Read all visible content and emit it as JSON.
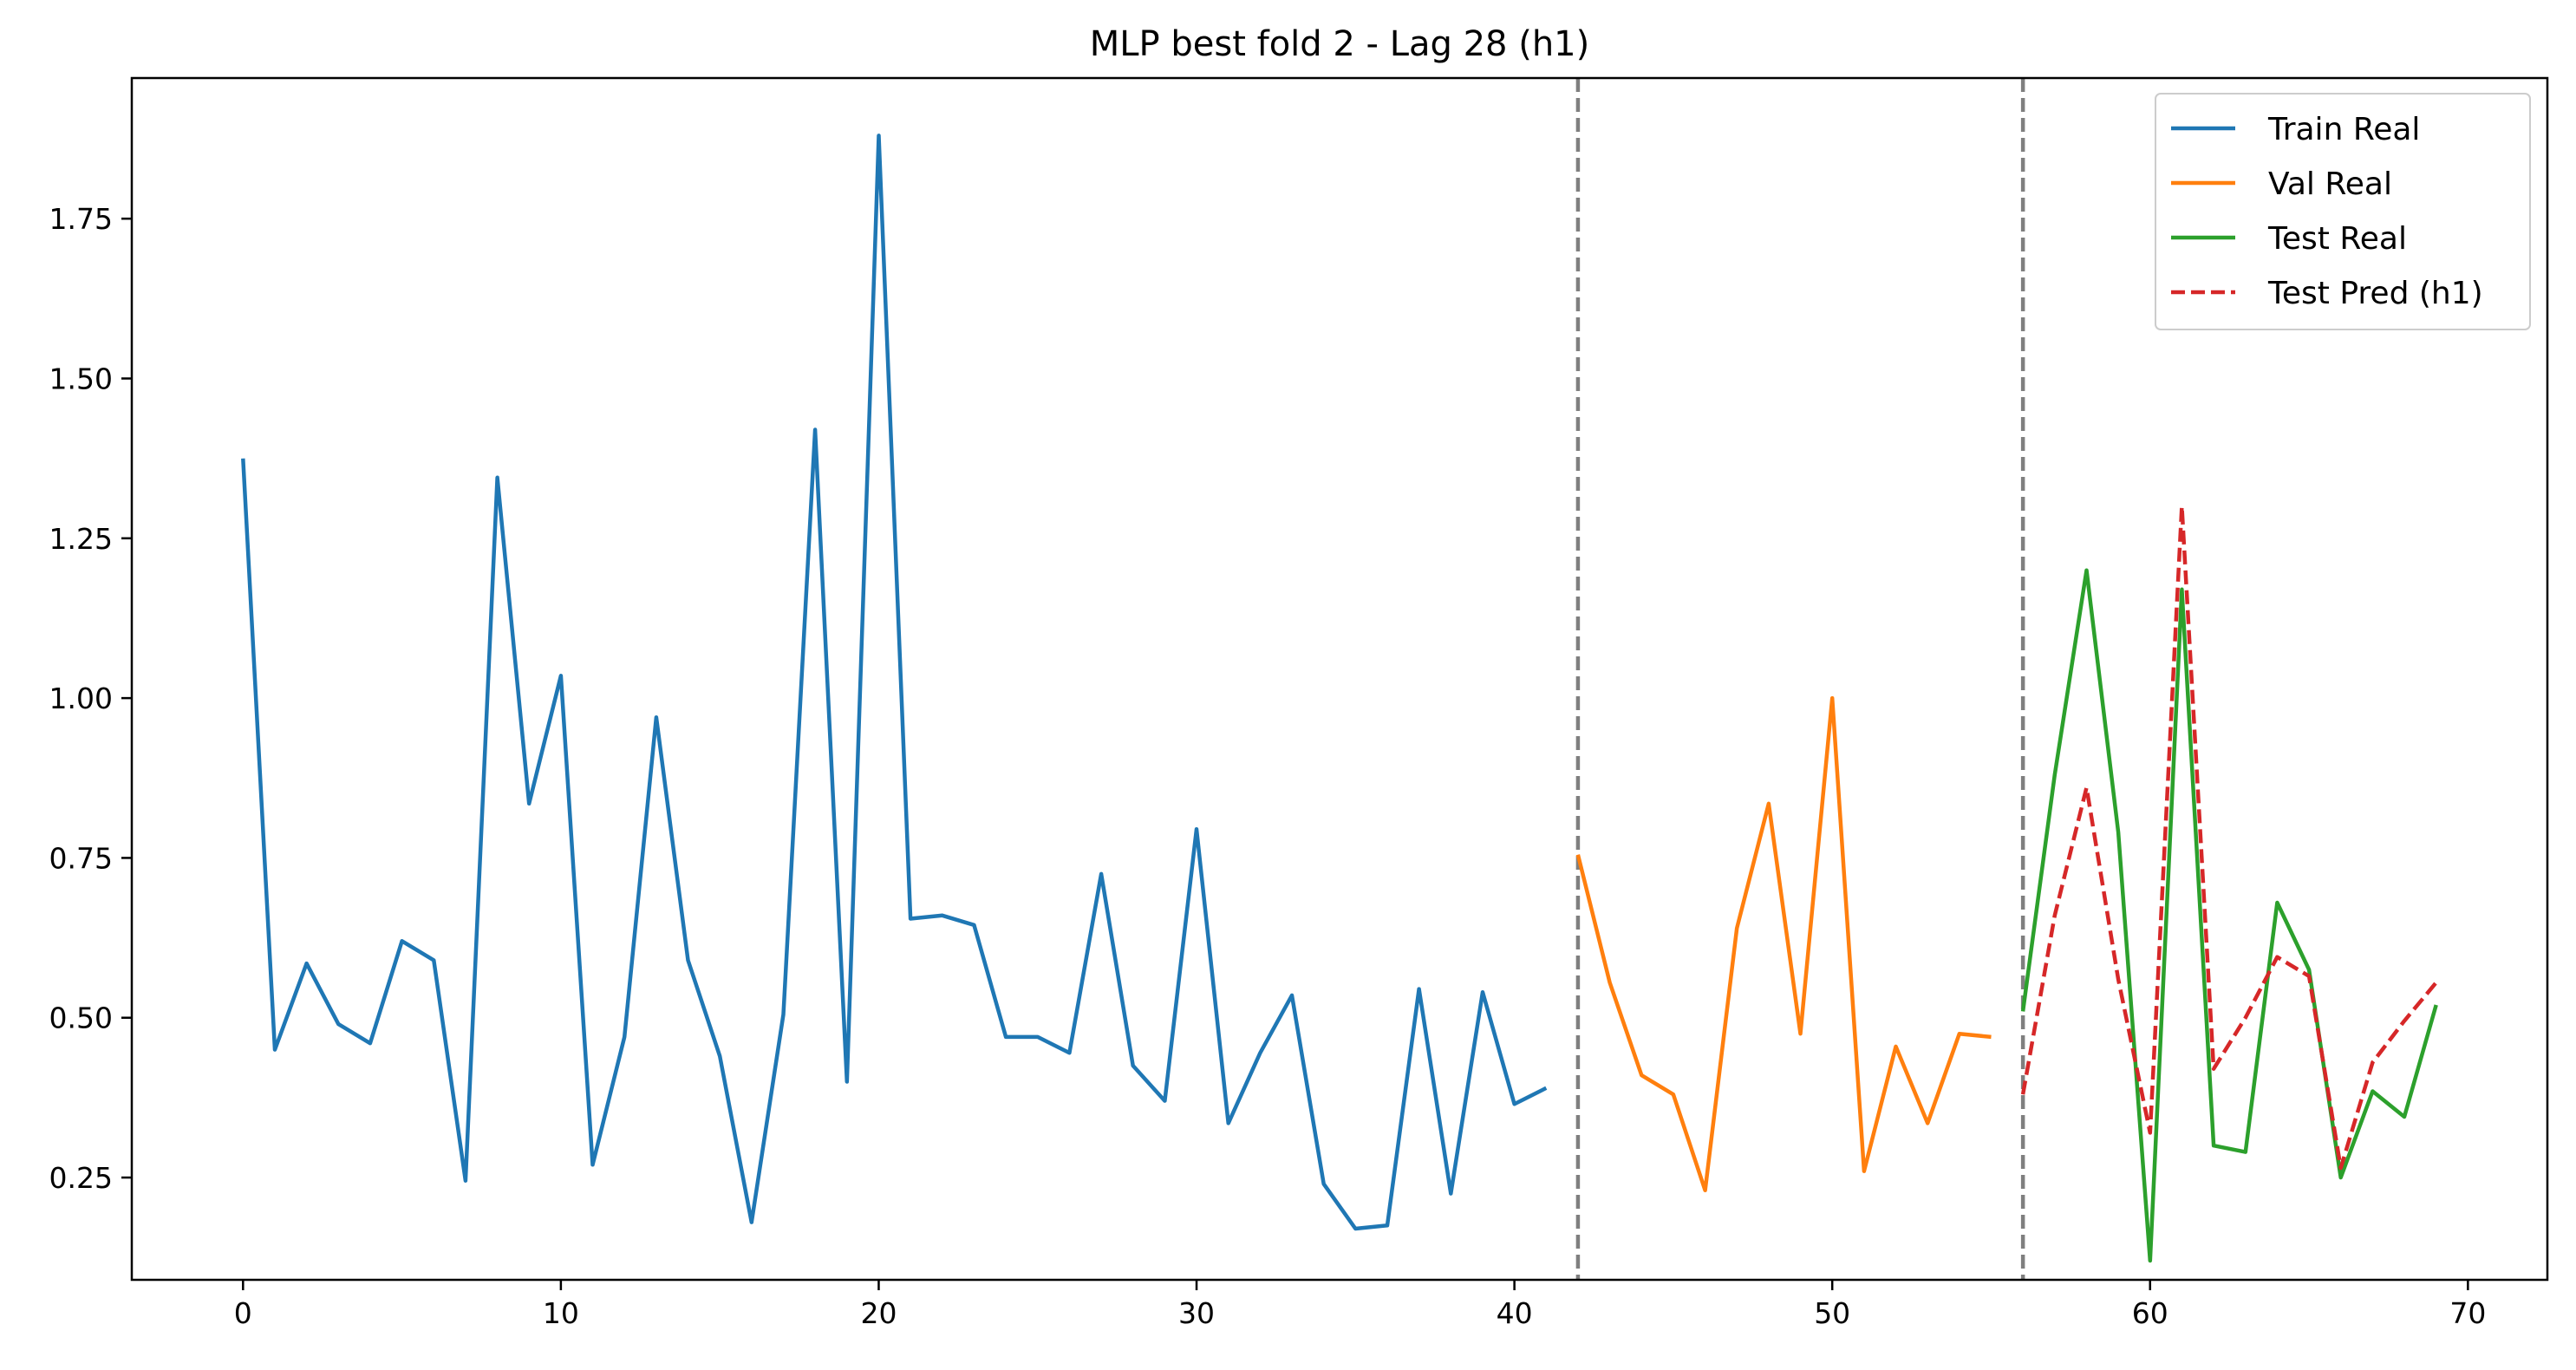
{
  "chart_data": {
    "type": "line",
    "title": "MLP best fold 2 - Lag 28 (h1)",
    "xlabel": "",
    "ylabel": "",
    "xlim": [
      -3.5,
      72.5
    ],
    "ylim": [
      0.09,
      1.97
    ],
    "xticks": [
      0,
      10,
      20,
      30,
      40,
      50,
      60,
      70
    ],
    "yticks": [
      0.25,
      0.5,
      0.75,
      1.0,
      1.25,
      1.5,
      1.75
    ],
    "ytick_labels": [
      "0.25",
      "0.50",
      "0.75",
      "1.00",
      "1.25",
      "1.50",
      "1.75"
    ],
    "grid": false,
    "legend_position": "top-right",
    "vlines": [
      {
        "x": 42,
        "color": "#7f7f7f",
        "style": "dashed"
      },
      {
        "x": 56,
        "color": "#7f7f7f",
        "style": "dashed"
      }
    ],
    "series": [
      {
        "name": "Train Real",
        "color": "#1f77b4",
        "style": "solid",
        "x": [
          0,
          1,
          2,
          3,
          4,
          5,
          6,
          7,
          8,
          9,
          10,
          11,
          12,
          13,
          14,
          15,
          16,
          17,
          18,
          19,
          20,
          21,
          22,
          23,
          24,
          25,
          26,
          27,
          28,
          29,
          30,
          31,
          32,
          33,
          34,
          35,
          36,
          37,
          38,
          39,
          40,
          41
        ],
        "values": [
          1.375,
          0.45,
          0.585,
          0.49,
          0.46,
          0.62,
          0.59,
          0.245,
          1.345,
          0.835,
          1.035,
          0.27,
          0.47,
          0.97,
          0.59,
          0.44,
          0.18,
          0.505,
          1.42,
          0.4,
          1.88,
          0.655,
          0.66,
          0.645,
          0.47,
          0.47,
          0.445,
          0.725,
          0.425,
          0.37,
          0.795,
          0.335,
          0.445,
          0.535,
          0.24,
          0.17,
          0.175,
          0.545,
          0.225,
          0.54,
          0.365,
          0.39
        ]
      },
      {
        "name": "Val Real",
        "color": "#ff7f0e",
        "style": "solid",
        "x": [
          42,
          43,
          44,
          45,
          46,
          47,
          48,
          49,
          50,
          51,
          52,
          53,
          54,
          55
        ],
        "values": [
          0.755,
          0.555,
          0.41,
          0.38,
          0.23,
          0.64,
          0.835,
          0.475,
          1.0,
          0.26,
          0.455,
          0.335,
          0.475,
          0.47
        ]
      },
      {
        "name": "Test Real",
        "color": "#2ca02c",
        "style": "solid",
        "x": [
          56,
          57,
          58,
          59,
          60,
          61,
          62,
          63,
          64,
          65,
          66,
          67,
          68,
          69
        ],
        "values": [
          0.51,
          0.88,
          1.2,
          0.79,
          0.12,
          1.17,
          0.3,
          0.29,
          0.68,
          0.575,
          0.25,
          0.385,
          0.345,
          0.52
        ]
      },
      {
        "name": "Test Pred (h1)",
        "color": "#d62728",
        "style": "dashed",
        "x": [
          56,
          57,
          58,
          59,
          60,
          61,
          62,
          63,
          64,
          65,
          66,
          67,
          68,
          69
        ],
        "values": [
          0.38,
          0.66,
          0.86,
          0.56,
          0.32,
          1.3,
          0.42,
          0.5,
          0.595,
          0.565,
          0.265,
          0.43,
          0.495,
          0.555
        ]
      }
    ]
  }
}
